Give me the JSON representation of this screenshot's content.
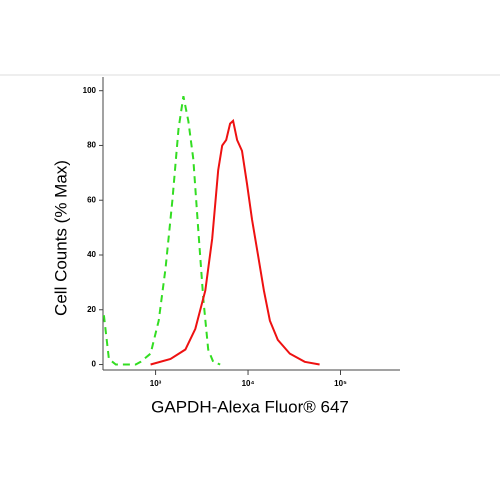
{
  "chart_data": {
    "type": "line",
    "x_label": "GAPDH-Alexa Fluor® 647",
    "y_label": "Cell Counts (% Max)",
    "log_x": true,
    "xlim": [
      270,
      440000
    ],
    "xticks": [
      {
        "value": 1000,
        "label": "10³"
      },
      {
        "value": 10000,
        "label": "10⁴"
      },
      {
        "value": 100000,
        "label": "10⁵"
      }
    ],
    "ylim": [
      -2,
      105
    ],
    "yticks": [
      0,
      20,
      40,
      60,
      80,
      100
    ],
    "series": [
      {
        "color": "#33dd22",
        "dash": true,
        "x": [
          276,
          313,
          371,
          610,
          690,
          883,
          1080,
          1280,
          1520,
          1770,
          2000,
          2260,
          2560,
          2900,
          3280,
          3710,
          4200,
          5000
        ],
        "values": [
          18,
          2,
          0,
          0,
          1,
          4,
          16,
          35,
          60,
          86,
          98,
          89,
          75,
          49,
          24,
          5.5,
          1,
          0
        ]
      },
      {
        "color": "#ee1111",
        "dash": false,
        "x": [
          883,
          1450,
          2100,
          2690,
          3450,
          4100,
          4760,
          5250,
          5800,
          6400,
          6900,
          7620,
          8610,
          9750,
          11040,
          12820,
          14860,
          17240,
          21000,
          28300,
          41000,
          59400
        ],
        "values": [
          0,
          2,
          5.5,
          13,
          27,
          46,
          71,
          80,
          82,
          88,
          89,
          82,
          78,
          66,
          53,
          40,
          27,
          16,
          9,
          4,
          1,
          0
        ]
      }
    ]
  }
}
